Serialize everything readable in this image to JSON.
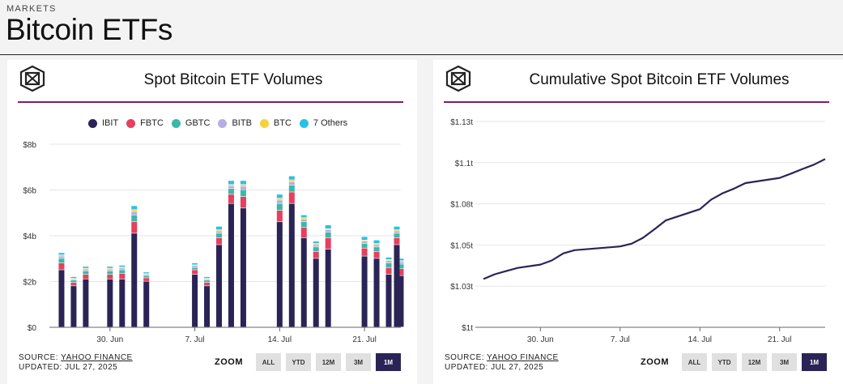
{
  "header": {
    "kicker": "MARKETS",
    "title": "Bitcoin ETFs"
  },
  "colors": {
    "IBIT": "#2a2456",
    "FBTC": "#e5405e",
    "GBTC": "#3bb8a8",
    "BITB": "#b7aee0",
    "BTC": "#f5d23c",
    "Others": "#25c2e8",
    "accent": "#7b1e6a",
    "line": "#2a2456"
  },
  "icons": {
    "logo": "box-logo-icon"
  },
  "left_card": {
    "title": "Spot Bitcoin ETF Volumes",
    "legend": [
      "IBIT",
      "FBTC",
      "GBTC",
      "BITB",
      "BTC",
      "7 Others"
    ],
    "source_label": "SOURCE: ",
    "source_link": "YAHOO FINANCE",
    "updated": "UPDATED: JUL 27, 2025",
    "zoom_label": "ZOOM",
    "zoom_options": [
      "ALL",
      "YTD",
      "12M",
      "3M",
      "1M"
    ],
    "zoom_active": "1M"
  },
  "right_card": {
    "title": "Cumulative Spot Bitcoin ETF Volumes",
    "source_label": "SOURCE: ",
    "source_link": "YAHOO FINANCE",
    "updated": "UPDATED: JUL 27, 2025",
    "zoom_label": "ZOOM",
    "zoom_options": [
      "ALL",
      "YTD",
      "12M",
      "3M",
      "1M"
    ],
    "zoom_active": "1M"
  },
  "chart_data": [
    {
      "type": "bar",
      "stacked": true,
      "title": "Spot Bitcoin ETF Volumes",
      "ylim": [
        0,
        8
      ],
      "yticks": [
        0,
        2,
        4,
        6,
        8
      ],
      "ytick_labels": [
        "$0",
        "$2b",
        "$4b",
        "$6b",
        "$8b"
      ],
      "xlim": [
        25,
        54
      ],
      "xticks": [
        30,
        37,
        44,
        51
      ],
      "xtick_labels": [
        "30. Jun",
        "7. Jul",
        "14. Jul",
        "21. Jul"
      ],
      "x": [
        26,
        27,
        28,
        30,
        31,
        32,
        33,
        37,
        38,
        39,
        40,
        41,
        44,
        45,
        46,
        47,
        48,
        51,
        52,
        53,
        54,
        55
      ],
      "series": [
        {
          "name": "IBIT",
          "values": [
            2.5,
            1.8,
            2.1,
            2.1,
            2.1,
            4.1,
            2.0,
            2.3,
            1.8,
            3.6,
            5.4,
            5.2,
            4.6,
            5.4,
            3.9,
            3.0,
            3.4,
            3.1,
            3.0,
            2.3,
            2.25,
            3.6
          ]
        },
        {
          "name": "FBTC",
          "values": [
            0.3,
            0.15,
            0.2,
            0.2,
            0.25,
            0.5,
            0.15,
            0.2,
            0.15,
            0.3,
            0.4,
            0.5,
            0.5,
            0.5,
            0.45,
            0.3,
            0.5,
            0.35,
            0.3,
            0.3,
            0.3,
            0.3
          ]
        },
        {
          "name": "GBTC",
          "values": [
            0.2,
            0.1,
            0.15,
            0.15,
            0.15,
            0.3,
            0.1,
            0.1,
            0.1,
            0.2,
            0.25,
            0.3,
            0.3,
            0.3,
            0.25,
            0.2,
            0.25,
            0.2,
            0.2,
            0.2,
            0.2,
            0.2
          ]
        },
        {
          "name": "BITB",
          "values": [
            0.1,
            0.05,
            0.08,
            0.08,
            0.08,
            0.15,
            0.05,
            0.08,
            0.05,
            0.1,
            0.12,
            0.15,
            0.15,
            0.15,
            0.12,
            0.1,
            0.1,
            0.1,
            0.1,
            0.1,
            0.1,
            0.1
          ]
        },
        {
          "name": "BTC",
          "values": [
            0.05,
            0.03,
            0.04,
            0.04,
            0.04,
            0.08,
            0.03,
            0.04,
            0.03,
            0.05,
            0.06,
            0.08,
            0.08,
            0.08,
            0.06,
            0.05,
            0.05,
            0.05,
            0.05,
            0.05,
            0.05,
            0.05
          ]
        },
        {
          "name": "7 Others",
          "values": [
            0.1,
            0.07,
            0.08,
            0.08,
            0.08,
            0.17,
            0.07,
            0.08,
            0.07,
            0.15,
            0.17,
            0.17,
            0.17,
            0.17,
            0.12,
            0.1,
            0.16,
            0.15,
            0.15,
            0.1,
            0.1,
            0.15
          ]
        }
      ],
      "legend": [
        "IBIT",
        "FBTC",
        "GBTC",
        "BITB",
        "BTC",
        "7 Others"
      ]
    },
    {
      "type": "line",
      "title": "Cumulative Spot Bitcoin ETF Volumes",
      "ylim": [
        1.0,
        1.13
      ],
      "yticks": [
        1.0,
        1.026,
        1.052,
        1.078,
        1.104,
        1.13
      ],
      "ytick_labels": [
        "$1t",
        "$1.03t",
        "$1.05t",
        "$1.08t",
        "$1.1t",
        "$1.13t"
      ],
      "xlim": [
        25,
        55
      ],
      "xticks": [
        30,
        37,
        44,
        51
      ],
      "xtick_labels": [
        "30. Jun",
        "7. Jul",
        "14. Jul",
        "21. Jul"
      ],
      "series": [
        {
          "name": "Cumulative",
          "x": [
            25,
            26,
            27,
            28,
            30,
            31,
            32,
            33,
            37,
            38,
            39,
            40,
            41,
            44,
            45,
            46,
            47,
            48,
            51,
            52,
            53,
            54,
            55
          ],
          "values": [
            1.0305,
            1.0335,
            1.0355,
            1.0375,
            1.0396,
            1.0422,
            1.0467,
            1.0487,
            1.0511,
            1.0528,
            1.0565,
            1.0619,
            1.0675,
            1.0746,
            1.0807,
            1.0847,
            1.0876,
            1.0911,
            1.0944,
            1.0971,
            1.1,
            1.1027,
            1.1063
          ]
        }
      ]
    }
  ]
}
